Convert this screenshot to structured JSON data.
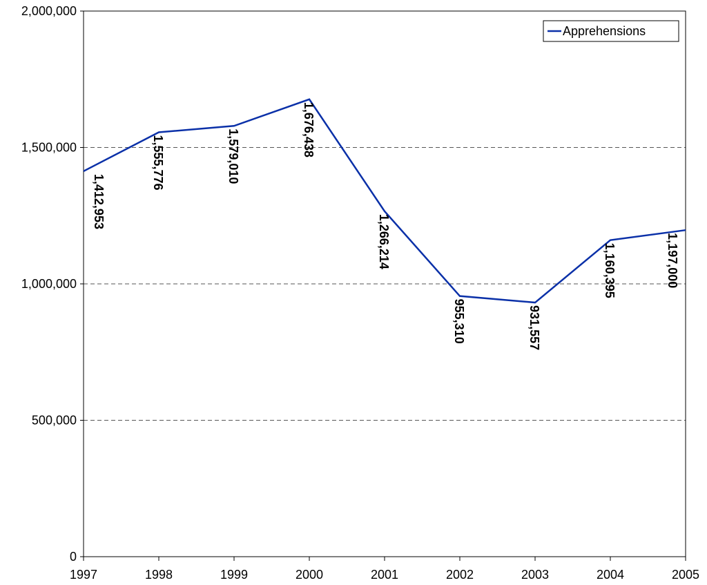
{
  "chart_data": {
    "type": "line",
    "x": [
      1997,
      1998,
      1999,
      2000,
      2001,
      2002,
      2003,
      2004,
      2005
    ],
    "series": [
      {
        "name": "Apprehensions",
        "color": "#0a30a8",
        "values": [
          1412953,
          1555776,
          1579010,
          1676438,
          1266214,
          955310,
          931557,
          1160395,
          1197000
        ],
        "value_labels": [
          "1,412,953",
          "1,555,776",
          "1,579,010",
          "1,676,438",
          "1,266,214",
          "955,310",
          "931,557",
          "1,160,395",
          "1,197,000"
        ]
      }
    ],
    "xlim": [
      1997,
      2005
    ],
    "xticks": [
      1997,
      1998,
      1999,
      2000,
      2001,
      2002,
      2003,
      2004,
      2005
    ],
    "ylim": [
      0,
      2000000
    ],
    "yticks": [
      0,
      {
        "value": 500000,
        "label": "500,000"
      },
      {
        "value": 1000000,
        "label": "1,000,000"
      },
      {
        "value": 1500000,
        "label": "1,500,000"
      },
      {
        "value": 2000000,
        "label": "2,000,000"
      }
    ],
    "grid": true,
    "legend": "top right"
  }
}
